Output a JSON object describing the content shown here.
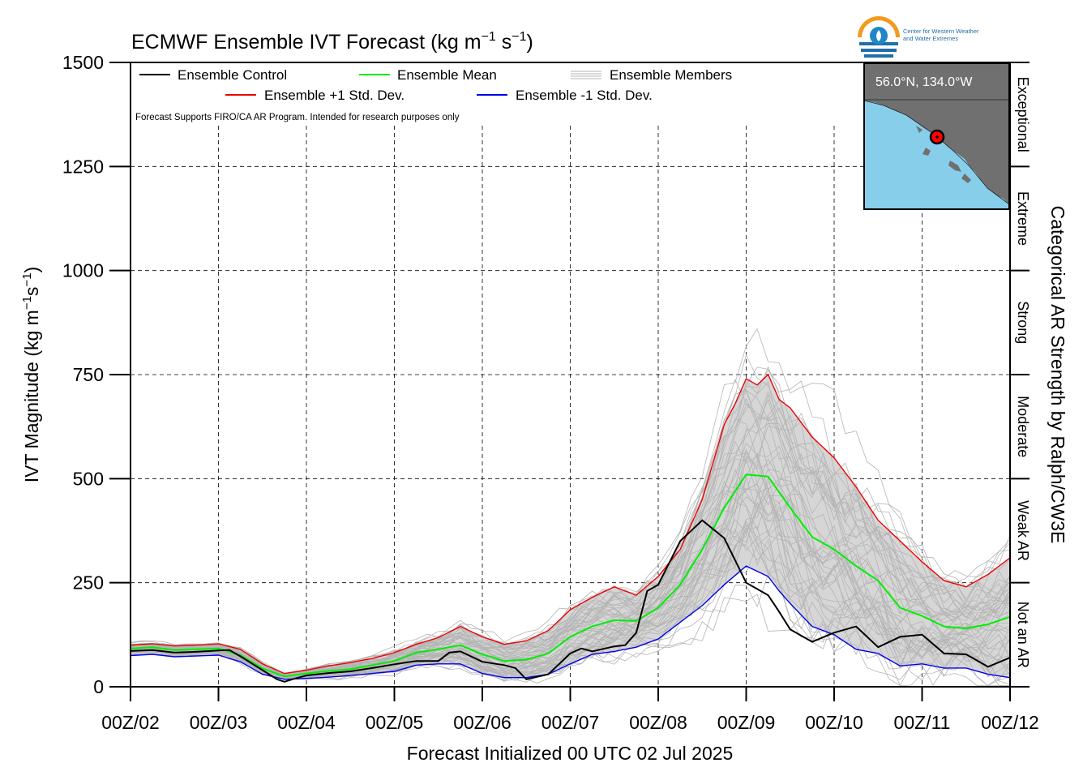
{
  "chart_data": {
    "type": "line",
    "title": "ECMWF Ensemble IVT Forecast (kg m",
    "title_sup1": "−1",
    "title_mid": " s",
    "title_sup2": "−1",
    "title_end": ")",
    "ylabel": "IVT Magnitude (kg m",
    "ylabel_sup1": "−1",
    "ylabel_mid": "s",
    "ylabel_sup2": "−1",
    "ylabel_end": ")",
    "xlabel": "Forecast Initialized 00 UTC 02 Jul 2025",
    "right_axis_label": "Categorical AR Strength by Ralph/CW3E",
    "disclaimer": "Forecast Supports FIRO/CA AR Program. Intended for research purposes only",
    "xlim": [
      0,
      240
    ],
    "ylim": [
      0,
      1500
    ],
    "x_unit": "forecast hour",
    "grid": true,
    "x_ticks": [
      {
        "x": 0,
        "label": "00Z/02"
      },
      {
        "x": 24,
        "label": "00Z/03"
      },
      {
        "x": 48,
        "label": "00Z/04"
      },
      {
        "x": 72,
        "label": "00Z/05"
      },
      {
        "x": 96,
        "label": "00Z/06"
      },
      {
        "x": 120,
        "label": "00Z/07"
      },
      {
        "x": 144,
        "label": "00Z/08"
      },
      {
        "x": 168,
        "label": "00Z/09"
      },
      {
        "x": 192,
        "label": "00Z/10"
      },
      {
        "x": 216,
        "label": "00Z/11"
      },
      {
        "x": 240,
        "label": "00Z/12"
      }
    ],
    "y_ticks": [
      {
        "y": 0,
        "label": "0"
      },
      {
        "y": 250,
        "label": "250"
      },
      {
        "y": 500,
        "label": "500"
      },
      {
        "y": 750,
        "label": "750"
      },
      {
        "y": 1000,
        "label": "1000"
      },
      {
        "y": 1250,
        "label": "1250"
      },
      {
        "y": 1500,
        "label": "1500"
      }
    ],
    "categories": [
      {
        "label": "Not an AR",
        "from": 0,
        "to": 250
      },
      {
        "label": "Weak AR",
        "from": 250,
        "to": 500
      },
      {
        "label": "Moderate",
        "from": 500,
        "to": 750
      },
      {
        "label": "Strong",
        "from": 750,
        "to": 1000
      },
      {
        "label": "Extreme",
        "from": 1000,
        "to": 1250
      },
      {
        "label": "Exceptional",
        "from": 1250,
        "to": 1500
      }
    ],
    "legend": {
      "placement": "top-left",
      "items": [
        {
          "key": "control",
          "label": "Ensemble Control"
        },
        {
          "key": "mean",
          "label": "Ensemble Mean"
        },
        {
          "key": "members",
          "label": "Ensemble Members"
        },
        {
          "key": "plus",
          "label": "Ensemble +1 Std. Dev."
        },
        {
          "key": "minus",
          "label": "Ensemble -1 Std. Dev."
        }
      ]
    },
    "colors": {
      "control": "#000000",
      "mean": "#00ee00",
      "plus": "#ee0000",
      "minus": "#0000ee",
      "members": "#b4b4b4",
      "spread_fill": "#d6d6d6",
      "map_land": "#707070",
      "map_ocean": "#87ceeb",
      "marker": "#ff0000"
    },
    "series": [
      {
        "key": "control",
        "name": "Ensemble Control",
        "x": [
          0,
          6,
          12,
          18,
          24,
          27,
          30,
          36,
          40,
          42,
          45,
          48,
          54,
          60,
          66,
          72,
          78,
          84,
          87,
          90,
          96,
          102,
          105,
          108,
          114,
          120,
          123,
          126,
          132,
          135,
          138,
          141,
          144,
          150,
          156,
          162,
          168,
          174,
          177,
          180,
          186,
          192,
          198,
          204,
          210,
          216,
          222,
          228,
          234,
          240
        ],
        "y": [
          86,
          88,
          82,
          84,
          87,
          88,
          73,
          40,
          18,
          12,
          20,
          27,
          33,
          37,
          45,
          54,
          62,
          62,
          82,
          85,
          60,
          52,
          45,
          18,
          30,
          80,
          92,
          85,
          97,
          100,
          130,
          230,
          245,
          350,
          400,
          357,
          250,
          220,
          180,
          138,
          108,
          130,
          145,
          95,
          120,
          125,
          80,
          78,
          48,
          70
        ]
      },
      {
        "key": "mean",
        "name": "Ensemble Mean",
        "x": [
          0,
          6,
          12,
          18,
          24,
          30,
          36,
          42,
          48,
          54,
          60,
          66,
          72,
          78,
          84,
          90,
          96,
          102,
          108,
          114,
          120,
          126,
          132,
          138,
          144,
          150,
          156,
          162,
          168,
          174,
          180,
          186,
          192,
          198,
          204,
          210,
          216,
          222,
          228,
          234,
          240
        ],
        "y": [
          92,
          95,
          88,
          90,
          92,
          76,
          44,
          25,
          32,
          38,
          42,
          52,
          62,
          82,
          90,
          100,
          78,
          62,
          65,
          80,
          120,
          145,
          160,
          158,
          190,
          245,
          330,
          430,
          510,
          505,
          430,
          360,
          330,
          290,
          255,
          190,
          170,
          145,
          140,
          150,
          168
        ]
      },
      {
        "key": "plus",
        "name": "Ensemble +1 Std. Dev.",
        "x": [
          0,
          6,
          12,
          18,
          24,
          30,
          36,
          42,
          48,
          54,
          60,
          66,
          72,
          78,
          84,
          90,
          96,
          102,
          108,
          114,
          120,
          126,
          132,
          138,
          144,
          150,
          156,
          162,
          165,
          168,
          171,
          174,
          177,
          180,
          186,
          192,
          198,
          204,
          210,
          216,
          222,
          228,
          234,
          240
        ],
        "y": [
          100,
          103,
          98,
          100,
          103,
          90,
          55,
          32,
          40,
          50,
          58,
          68,
          82,
          102,
          118,
          145,
          120,
          102,
          110,
          135,
          185,
          215,
          240,
          220,
          265,
          330,
          450,
          630,
          680,
          740,
          725,
          750,
          690,
          670,
          600,
          550,
          480,
          400,
          350,
          300,
          255,
          240,
          270,
          310
        ]
      },
      {
        "key": "minus",
        "name": "Ensemble -1 Std. Dev.",
        "x": [
          0,
          6,
          12,
          18,
          24,
          30,
          36,
          42,
          48,
          54,
          60,
          66,
          72,
          78,
          84,
          90,
          96,
          102,
          108,
          114,
          120,
          126,
          132,
          138,
          144,
          150,
          156,
          162,
          168,
          174,
          177,
          180,
          186,
          192,
          198,
          204,
          210,
          216,
          222,
          228,
          234,
          240
        ],
        "y": [
          75,
          78,
          72,
          74,
          76,
          60,
          30,
          18,
          20,
          23,
          27,
          32,
          37,
          52,
          55,
          55,
          32,
          22,
          22,
          30,
          55,
          78,
          85,
          95,
          115,
          155,
          195,
          245,
          290,
          265,
          230,
          200,
          145,
          125,
          90,
          80,
          50,
          55,
          45,
          45,
          30,
          22
        ]
      }
    ]
  },
  "inset_map": {
    "coord_label": "56.0°N, 134.0°W"
  },
  "logo": {
    "text_line1": "Center for Western Weather",
    "text_line2": "and Water Extremes"
  }
}
